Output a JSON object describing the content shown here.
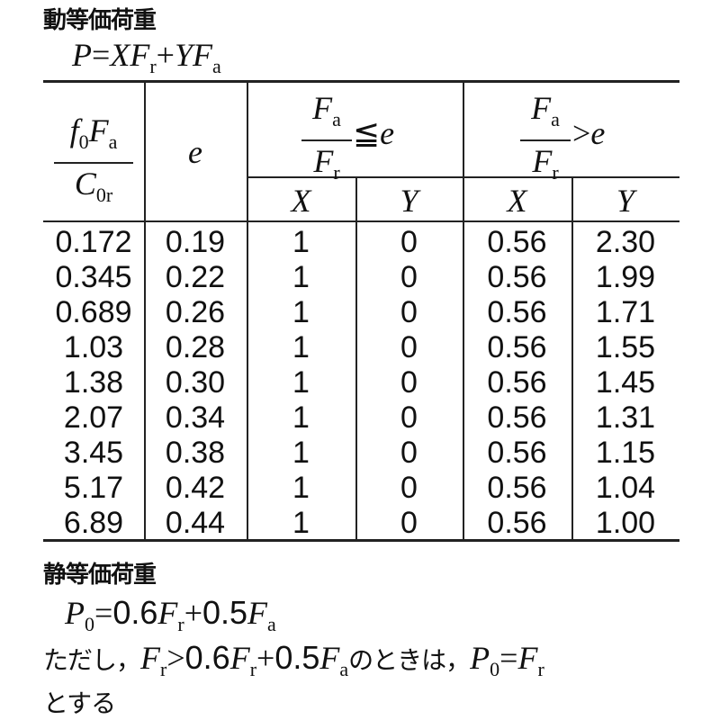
{
  "dynamic": {
    "title": "動等価荷重",
    "formula": [
      {
        "t": "P",
        "s": "i"
      },
      {
        "t": "=",
        "s": "n"
      },
      {
        "t": "X",
        "s": "i"
      },
      {
        "t": "F",
        "s": "i"
      },
      {
        "t": "r",
        "s": "sub"
      },
      {
        "t": "+",
        "s": "n"
      },
      {
        "t": "Y",
        "s": "i"
      },
      {
        "t": "F",
        "s": "i"
      },
      {
        "t": "a",
        "s": "sub"
      }
    ]
  },
  "table": {
    "header": {
      "col1": {
        "num_f": "f",
        "num_f_sub": "0",
        "num_F": "F",
        "num_F_sub": "a",
        "den": "C",
        "den_sub": "0r"
      },
      "col2": "e",
      "group1": {
        "num": "F",
        "num_sub": "a",
        "den": "F",
        "den_sub": "r",
        "relation": "≦",
        "rhs": "e"
      },
      "group2": {
        "num": "F",
        "num_sub": "a",
        "den": "F",
        "den_sub": "r",
        "relation": ">",
        "rhs": "e"
      },
      "sub_columns": [
        "X",
        "Y",
        "X",
        "Y"
      ]
    },
    "rows": [
      [
        "0.172",
        "0.19",
        "1",
        "0",
        "0.56",
        "2.30"
      ],
      [
        "0.345",
        "0.22",
        "1",
        "0",
        "0.56",
        "1.99"
      ],
      [
        "0.689",
        "0.26",
        "1",
        "0",
        "0.56",
        "1.71"
      ],
      [
        "1.03",
        "0.28",
        "1",
        "0",
        "0.56",
        "1.55"
      ],
      [
        "1.38",
        "0.30",
        "1",
        "0",
        "0.56",
        "1.45"
      ],
      [
        "2.07",
        "0.34",
        "1",
        "0",
        "0.56",
        "1.31"
      ],
      [
        "3.45",
        "0.38",
        "1",
        "0",
        "0.56",
        "1.15"
      ],
      [
        "5.17",
        "0.42",
        "1",
        "0",
        "0.56",
        "1.04"
      ],
      [
        "6.89",
        "0.44",
        "1",
        "0",
        "0.56",
        "1.00"
      ]
    ]
  },
  "static": {
    "title": "静等価荷重",
    "formula": [
      {
        "t": "P",
        "s": "i"
      },
      {
        "t": "0",
        "s": "sub"
      },
      {
        "t": "=",
        "s": "n"
      },
      {
        "t": "0.6",
        "s": "sn"
      },
      {
        "t": "F",
        "s": "i"
      },
      {
        "t": "r",
        "s": "sub"
      },
      {
        "t": "+",
        "s": "n"
      },
      {
        "t": "0.5",
        "s": "sn"
      },
      {
        "t": "F",
        "s": "i"
      },
      {
        "t": "a",
        "s": "sub"
      }
    ],
    "note": [
      {
        "t": "ただし，",
        "s": "jpn"
      },
      {
        "t": "F",
        "s": "i"
      },
      {
        "t": "r",
        "s": "sub"
      },
      {
        "t": ">",
        "s": "n"
      },
      {
        "t": "0.6",
        "s": "sn"
      },
      {
        "t": "F",
        "s": "i"
      },
      {
        "t": "r",
        "s": "sub"
      },
      {
        "t": "+",
        "s": "n"
      },
      {
        "t": "0.5",
        "s": "sn"
      },
      {
        "t": "F",
        "s": "i"
      },
      {
        "t": "a",
        "s": "sub"
      },
      {
        "t": "のときは，",
        "s": "jpn"
      },
      {
        "t": "P",
        "s": "i"
      },
      {
        "t": "0",
        "s": "sub"
      },
      {
        "t": "=",
        "s": "n"
      },
      {
        "t": "F",
        "s": "i"
      },
      {
        "t": "r",
        "s": "sub"
      }
    ],
    "note_end": "とする"
  }
}
